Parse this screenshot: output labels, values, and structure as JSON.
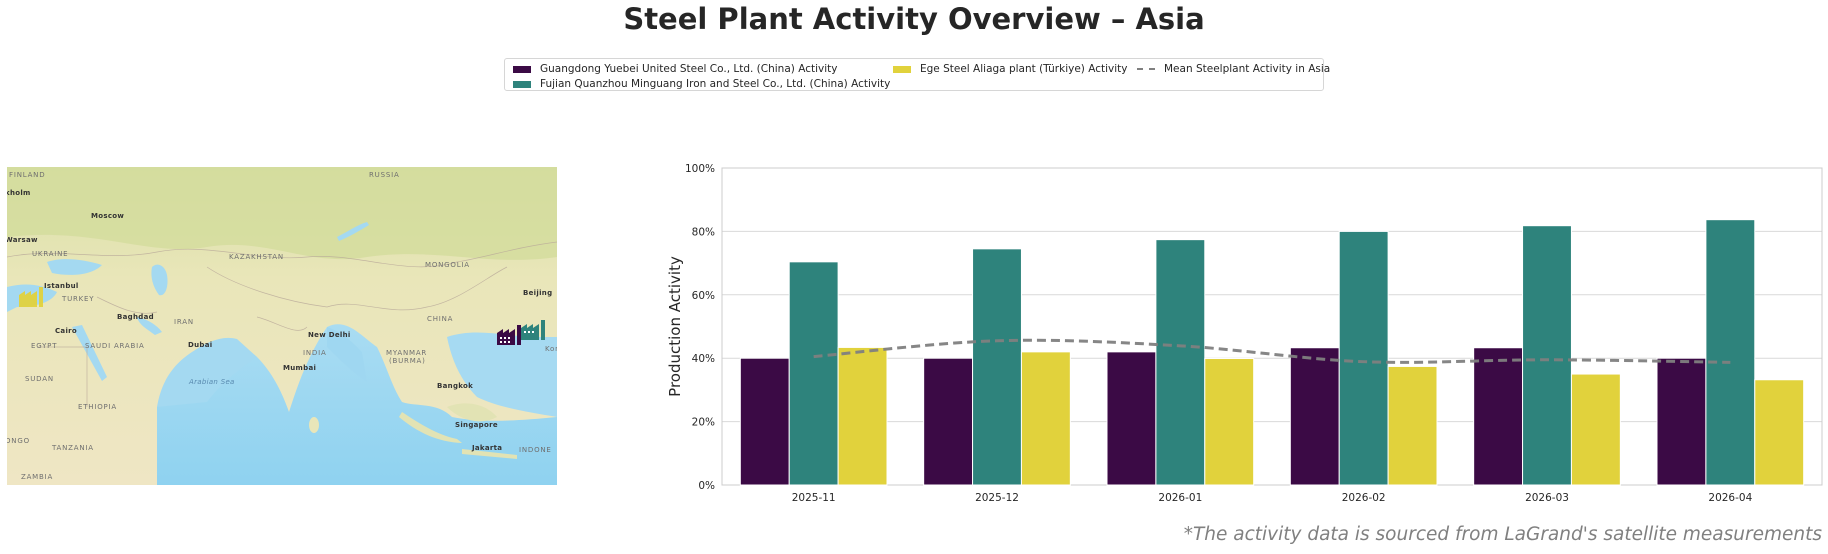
{
  "title": "Steel Plant Activity Overview – Asia",
  "legend": [
    {
      "label": "Guangdong Yuebei United Steel Co., Ltd. (China) Activity",
      "color": "#3b0a45",
      "kind": "bar"
    },
    {
      "label": "Fujian Quanzhou Minguang Iron and Steel Co., Ltd. (China) Activity",
      "color": "#2e837c",
      "kind": "bar"
    },
    {
      "label": "Ege Steel Aliaga plant (Türkiye) Activity",
      "color": "#e1d23c",
      "kind": "bar"
    },
    {
      "label": "Mean Steelplant Activity in Asia",
      "color": "#808080",
      "kind": "dashed-line"
    }
  ],
  "map": {
    "labels": [
      {
        "text": "FINLAND",
        "kind": "country"
      },
      {
        "text": "RUSSIA",
        "kind": "country"
      },
      {
        "text": "kholm",
        "kind": "city"
      },
      {
        "text": "Moscow",
        "kind": "city"
      },
      {
        "text": "Warsaw",
        "kind": "city"
      },
      {
        "text": "UKRAINE",
        "kind": "country"
      },
      {
        "text": "KAZAKHSTAN",
        "kind": "country"
      },
      {
        "text": "MONGOLIA",
        "kind": "country"
      },
      {
        "text": "Istanbul",
        "kind": "city"
      },
      {
        "text": "TURKEY",
        "kind": "country"
      },
      {
        "text": "Beijing",
        "kind": "city"
      },
      {
        "text": "Baghdad",
        "kind": "city"
      },
      {
        "text": "IRAN",
        "kind": "country"
      },
      {
        "text": "CHINA",
        "kind": "country"
      },
      {
        "text": "Cairo",
        "kind": "city"
      },
      {
        "text": "New Delhi",
        "kind": "city"
      },
      {
        "text": "EGYPT",
        "kind": "country"
      },
      {
        "text": "SAUDI ARABIA",
        "kind": "country"
      },
      {
        "text": "Dubai",
        "kind": "city"
      },
      {
        "text": "INDIA",
        "kind": "country"
      },
      {
        "text": "MYANMAR",
        "kind": "country"
      },
      {
        "text": "(BURMA)",
        "kind": "country"
      },
      {
        "text": "Mumbai",
        "kind": "city"
      },
      {
        "text": "SUDAN",
        "kind": "country"
      },
      {
        "text": "Arabian Sea",
        "kind": "sea"
      },
      {
        "text": "Bangkok",
        "kind": "city"
      },
      {
        "text": "ETHIOPIA",
        "kind": "country"
      },
      {
        "text": "Singapore",
        "kind": "city"
      },
      {
        "text": "ONGO",
        "kind": "country"
      },
      {
        "text": "TANZANIA",
        "kind": "country"
      },
      {
        "text": "Jakarta",
        "kind": "city"
      },
      {
        "text": "INDONE",
        "kind": "country"
      },
      {
        "text": "ZAMBIA",
        "kind": "country"
      },
      {
        "text": "Kor",
        "kind": "country"
      }
    ],
    "markers": [
      {
        "name": "Ege Steel Aliaga plant",
        "color": "#e1d23c",
        "icon": "factory-icon"
      },
      {
        "name": "Guangdong Yuebei United Steel",
        "color": "#3b0a45",
        "icon": "factory-icon"
      },
      {
        "name": "Fujian Quanzhou Minguang Iron and Steel",
        "color": "#2e837c",
        "icon": "factory-icon"
      }
    ]
  },
  "chart_data": {
    "type": "bar",
    "title": "",
    "xlabel": "",
    "ylabel": "Production Activity",
    "ylim": [
      0,
      100
    ],
    "yticks": [
      "0%",
      "20%",
      "40%",
      "60%",
      "80%",
      "100%"
    ],
    "ytick_values": [
      0,
      20,
      40,
      60,
      80,
      100
    ],
    "grid": true,
    "legend_position": "top-center",
    "categories": [
      "2025-11",
      "2025-12",
      "2026-01",
      "2026-02",
      "2026-03",
      "2026-04"
    ],
    "series": [
      {
        "name": "Guangdong Yuebei United Steel Co., Ltd. (China) Activity",
        "type": "bar",
        "color": "#3b0a45",
        "values": [
          40,
          40,
          42,
          43.3,
          43.3,
          40
        ]
      },
      {
        "name": "Fujian Quanzhou Minguang Iron and Steel Co., Ltd. (China) Activity",
        "type": "bar",
        "color": "#2e837c",
        "values": [
          70.4,
          74.5,
          77.4,
          80,
          81.8,
          83.7
        ]
      },
      {
        "name": "Ege Steel Aliaga plant (Türkiye) Activity",
        "type": "bar",
        "color": "#e1d23c",
        "values": [
          43.4,
          42,
          39.9,
          37.4,
          35,
          33.2
        ]
      },
      {
        "name": "Mean Steelplant Activity in Asia",
        "type": "line",
        "style": "dashed",
        "color": "#808080",
        "values": [
          40.5,
          45.5,
          43.9,
          38.9,
          39.5,
          38.7
        ]
      }
    ]
  },
  "footnote": "*The activity data is sourced from LaGrand's satellite measurements"
}
